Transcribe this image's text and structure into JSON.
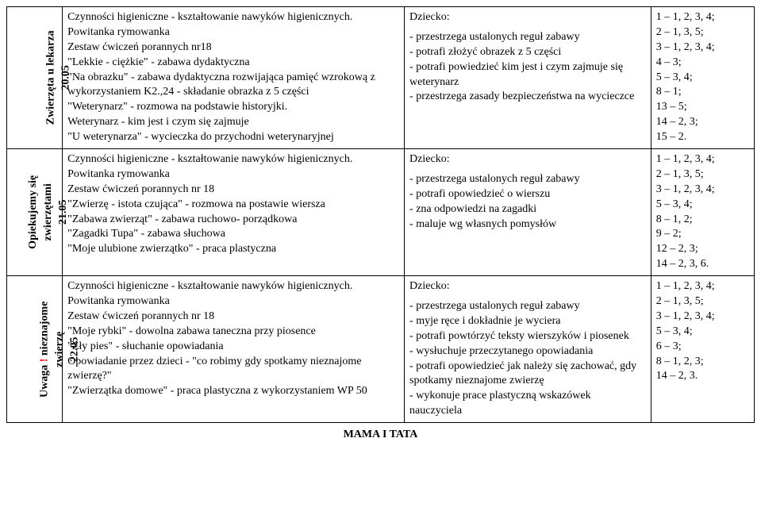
{
  "footer_title": "MAMA I TATA",
  "rows": [
    {
      "label_html": "Zwierzęta u lekarza<br>20.05",
      "activities": [
        "Czynności higieniczne - kształtowanie nawyków higienicznych.",
        "Powitanka rymowanka",
        "Zestaw ćwiczeń porannych nr18",
        "\"Lekkie - ciężkie\" - zabawa dydaktyczna",
        "\"Na obrazku\" - zabawa dydaktyczna rozwijająca pamięć wzrokową z wykorzystaniem K2.,24 - składanie obrazka z 5 części",
        "\"Weterynarz\" - rozmowa na podstawie historyjki.",
        "Weterynarz - kim jest i czym się zajmuje",
        "\"U weterynarza\" - wycieczka do przychodni weterynaryjnej"
      ],
      "child_heading": "Dziecko:",
      "child_items": [
        "- przestrzega ustalonych reguł zabawy",
        "- potrafi złożyć obrazek z 5 części",
        "- potrafi powiedzieć kim jest i czym zajmuje się weterynarz",
        "- przestrzega zasady bezpieczeństwa na wycieczce"
      ],
      "codes": [
        "1 – 1, 2, 3, 4;",
        "2 – 1, 3, 5;",
        "3 – 1, 2, 3, 4;",
        "4 – 3;",
        "5 – 3, 4;",
        "8 – 1;",
        "13 – 5;",
        "14 – 2, 3;",
        "15 – 2."
      ]
    },
    {
      "label_html": "Opiekujemy się<br>zwierzętami<br>21.05",
      "activities": [
        "Czynności higieniczne - kształtowanie nawyków higienicznych.",
        "Powitanka rymowanka",
        "Zestaw ćwiczeń porannych nr 18",
        "\"Zwierzę - istota czująca\" - rozmowa na postawie wiersza",
        "\"Zabawa zwierząt\" - zabawa ruchowo- porządkowa",
        "\"Zagadki Tupa\" - zabawa słuchowa",
        "\"Moje ulubione zwierzątko\" - praca plastyczna"
      ],
      "child_heading": "Dziecko:",
      "child_items": [
        "- przestrzega ustalonych reguł zabawy",
        "- potrafi opowiedzieć o wierszu",
        "- zna odpowiedzi na zagadki",
        "- maluje wg własnych pomysłów"
      ],
      "codes": [
        "1 – 1, 2, 3, 4;",
        "2 – 1, 3, 5;",
        "3 – 1, 2, 3, 4;",
        "5 – 3, 4;",
        "8 – 1, 2;",
        "9 – 2;",
        "12 – 2, 3;",
        "14 – 2, 3, 6."
      ]
    },
    {
      "label_html": "Uwaga <span class=\"red\">!</span> nieznajome<br>zwierzę<br>22.05",
      "activities": [
        "Czynności higieniczne - kształtowanie nawyków higienicznych.",
        "Powitanka rymowanka",
        "Zestaw ćwiczeń porannych nr 18",
        "\"Moje rybki\" - dowolna zabawa taneczna przy piosence",
        "\"Zły pies\" - słuchanie opowiadania",
        "Opowiadanie przez dzieci - \"co robimy gdy spotkamy nieznajome zwierzę?\"",
        "\"Zwierzątka domowe\" - praca plastyczna z wykorzystaniem WP 50"
      ],
      "child_heading": "Dziecko:",
      "child_items": [
        "- przestrzega ustalonych reguł zabawy",
        "- myje ręce i dokładnie je wyciera",
        "- potrafi powtórzyć teksty wierszyków i piosenek",
        "- wysłuchuje przeczytanego opowiadania",
        "- potrafi opowiedzieć jak należy się zachować, gdy spotkamy nieznajome zwierzę",
        "- wykonuje prace plastyczną wskazówek nauczyciela"
      ],
      "codes": [
        "1 – 1, 2, 3, 4;",
        "2 – 1, 3, 5;",
        "3 – 1, 2, 3, 4;",
        "5 – 3, 4;",
        "6 – 3;",
        "8 – 1, 2, 3;",
        "14 – 2, 3."
      ]
    }
  ]
}
